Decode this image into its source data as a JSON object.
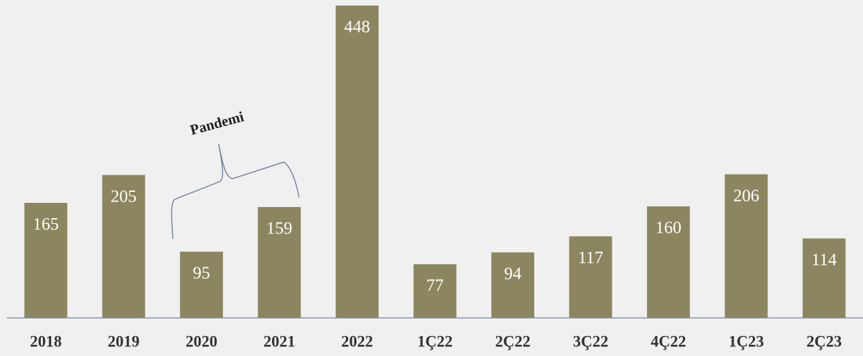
{
  "chart_data": {
    "type": "bar",
    "categories": [
      "2018",
      "2019",
      "2020",
      "2021",
      "2022",
      "1Ç22",
      "2Ç22",
      "3Ç22",
      "4Ç22",
      "1Ç23",
      "2Ç23"
    ],
    "values": [
      165,
      205,
      95,
      159,
      448,
      77,
      94,
      117,
      160,
      206,
      114
    ],
    "color": "#8c8660",
    "annotation": "Pandemi"
  }
}
